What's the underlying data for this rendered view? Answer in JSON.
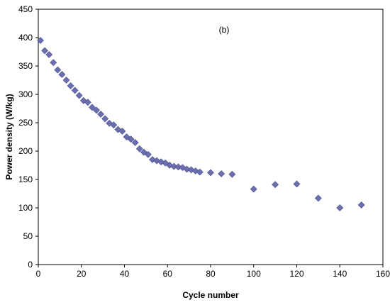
{
  "chart_data": {
    "type": "scatter",
    "annotation": "(b)",
    "xlabel": "Cycle number",
    "ylabel": "Power density (W/kg)",
    "xlim": [
      0,
      160
    ],
    "ylim": [
      0,
      450
    ],
    "xticks": [
      0,
      20,
      40,
      60,
      80,
      100,
      120,
      140,
      160
    ],
    "yticks": [
      0,
      50,
      100,
      150,
      200,
      250,
      300,
      350,
      400,
      450
    ],
    "grid": false,
    "marker": "diamond",
    "marker_color": "#6B6FB0",
    "marker_edge_color": "#4A4E8C",
    "series": [
      {
        "x": [
          1,
          3,
          5,
          7,
          9,
          11,
          13,
          15,
          17,
          19,
          21,
          23,
          25,
          27,
          29,
          31,
          33,
          35,
          37,
          39,
          41,
          43,
          45,
          47,
          49,
          51,
          53,
          55,
          57,
          59,
          61,
          63,
          65,
          67,
          69,
          71,
          73,
          75,
          80,
          85,
          90,
          100,
          110,
          120,
          130,
          140,
          150
        ],
        "y": [
          395,
          377,
          370,
          356,
          343,
          335,
          325,
          315,
          307,
          298,
          289,
          286,
          277,
          272,
          265,
          257,
          249,
          246,
          238,
          235,
          225,
          221,
          215,
          204,
          198,
          194,
          185,
          183,
          181,
          179,
          175,
          173,
          172,
          171,
          168,
          167,
          165,
          163,
          162,
          160,
          159,
          133,
          141,
          142,
          117,
          100,
          105
        ]
      }
    ]
  }
}
